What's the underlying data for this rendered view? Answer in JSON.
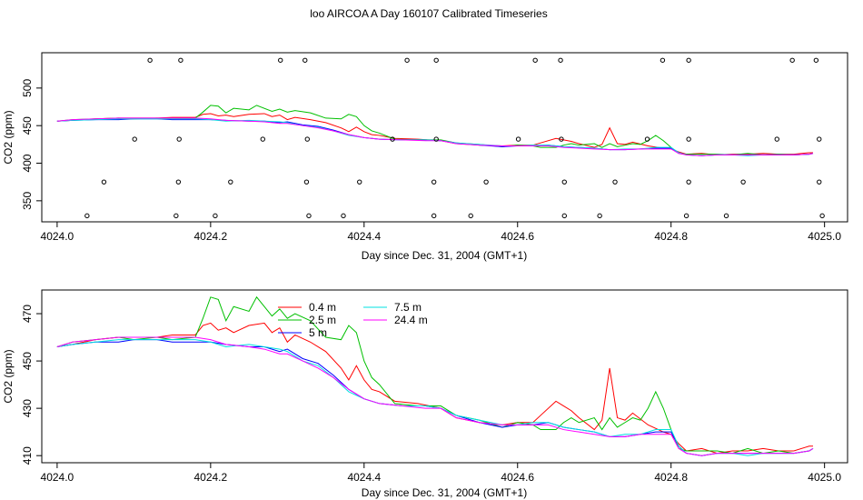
{
  "title": "loo AIRCOA A  Day 160107  Calibrated Timeseries",
  "colors": {
    "0.4 m": "#ff0000",
    "2.5 m": "#00c000",
    "5 m": "#0000ff",
    "7.5 m": "#00e0e0",
    "24.4 m": "#ff00ff",
    "axis": "#000000",
    "marker": "#000000"
  },
  "chart_data": [
    {
      "type": "line",
      "xlabel": "Day since Dec. 31, 2004 (GMT+1)",
      "ylabel": "CO2 (ppm)",
      "xlim": [
        4023.98,
        4025.03
      ],
      "ylim": [
        322,
        547
      ],
      "xticks": [
        "4024.0",
        "4024.2",
        "4024.4",
        "4024.6",
        "4024.8",
        "4025.0"
      ],
      "yticks": [
        "350",
        "400",
        "450",
        "500"
      ],
      "markers_note": "open circles mark samples at discrete levels",
      "markers": [
        [
          4024.121,
          537
        ],
        [
          4024.161,
          537
        ],
        [
          4024.291,
          537
        ],
        [
          4024.323,
          537
        ],
        [
          4024.456,
          537
        ],
        [
          4024.494,
          537
        ],
        [
          4024.623,
          537
        ],
        [
          4024.656,
          537
        ],
        [
          4024.789,
          537
        ],
        [
          4024.823,
          537
        ],
        [
          4024.958,
          537
        ],
        [
          4024.989,
          537
        ],
        [
          4024.101,
          432
        ],
        [
          4024.159,
          432
        ],
        [
          4024.268,
          432
        ],
        [
          4024.326,
          432
        ],
        [
          4024.437,
          432
        ],
        [
          4024.494,
          432
        ],
        [
          4024.601,
          432
        ],
        [
          4024.657,
          432
        ],
        [
          4024.769,
          432
        ],
        [
          4024.823,
          432
        ],
        [
          4024.938,
          432
        ],
        [
          4024.993,
          432
        ],
        [
          4024.061,
          375
        ],
        [
          4024.158,
          375
        ],
        [
          4024.226,
          375
        ],
        [
          4024.325,
          375
        ],
        [
          4024.394,
          375
        ],
        [
          4024.491,
          375
        ],
        [
          4024.559,
          375
        ],
        [
          4024.661,
          375
        ],
        [
          4024.727,
          375
        ],
        [
          4024.823,
          375
        ],
        [
          4024.894,
          375
        ],
        [
          4024.993,
          375
        ],
        [
          4024.039,
          330
        ],
        [
          4024.155,
          330
        ],
        [
          4024.206,
          330
        ],
        [
          4024.328,
          330
        ],
        [
          4024.373,
          330
        ],
        [
          4024.491,
          330
        ],
        [
          4024.539,
          330
        ],
        [
          4024.661,
          330
        ],
        [
          4024.707,
          330
        ],
        [
          4024.82,
          330
        ],
        [
          4024.872,
          330
        ],
        [
          4024.997,
          330
        ]
      ]
    },
    {
      "type": "line",
      "xlabel": "Day since Dec. 31, 2004 (GMT+1)",
      "ylabel": "CO2 (ppm)",
      "xlim": [
        4023.98,
        4025.03
      ],
      "ylim": [
        407,
        480
      ],
      "xticks": [
        "4024.0",
        "4024.2",
        "4024.4",
        "4024.6",
        "4024.8",
        "4025.0"
      ],
      "yticks": [
        "410",
        "430",
        "450",
        "470"
      ],
      "legend_position": "top-center",
      "series": [
        {
          "name": "0.4 m",
          "x": [
            4024.0,
            4024.02,
            4024.05,
            4024.08,
            4024.1,
            4024.13,
            4024.15,
            4024.18,
            4024.19,
            4024.2,
            4024.21,
            4024.22,
            4024.23,
            4024.25,
            4024.27,
            4024.28,
            4024.29,
            4024.3,
            4024.31,
            4024.33,
            4024.35,
            4024.37,
            4024.38,
            4024.39,
            4024.4,
            4024.41,
            4024.42,
            4024.44,
            4024.47,
            4024.5,
            4024.52,
            4024.55,
            4024.58,
            4024.6,
            4024.62,
            4024.63,
            4024.65,
            4024.66,
            4024.67,
            4024.68,
            4024.7,
            4024.71,
            4024.72,
            4024.73,
            4024.74,
            4024.75,
            4024.77,
            4024.79,
            4024.8,
            4024.81,
            4024.82,
            4024.84,
            4024.86,
            4024.88,
            4024.9,
            4024.92,
            4024.94,
            4024.96,
            4024.98,
            4024.985
          ],
          "values": [
            456,
            457,
            459,
            460,
            460,
            460,
            461,
            461,
            465,
            466,
            463,
            464,
            462,
            465,
            466,
            462,
            464,
            458,
            461,
            458,
            454,
            447,
            442,
            448,
            442,
            438,
            437,
            433,
            432,
            430,
            426,
            424,
            423,
            424,
            424,
            427,
            433,
            431,
            429,
            426,
            421,
            425,
            447,
            426,
            425,
            428,
            423,
            420,
            419,
            415,
            412,
            413,
            411,
            412,
            412,
            413,
            412,
            412,
            414,
            414
          ]
        },
        {
          "name": "2.5 m",
          "x": [
            4024.0,
            4024.02,
            4024.05,
            4024.08,
            4024.1,
            4024.13,
            4024.15,
            4024.18,
            4024.19,
            4024.2,
            4024.21,
            4024.22,
            4024.23,
            4024.25,
            4024.26,
            4024.28,
            4024.29,
            4024.3,
            4024.31,
            4024.33,
            4024.35,
            4024.37,
            4024.38,
            4024.39,
            4024.4,
            4024.41,
            4024.42,
            4024.44,
            4024.47,
            4024.5,
            4024.52,
            4024.55,
            4024.58,
            4024.6,
            4024.62,
            4024.63,
            4024.65,
            4024.66,
            4024.67,
            4024.68,
            4024.7,
            4024.71,
            4024.72,
            4024.73,
            4024.74,
            4024.75,
            4024.76,
            4024.77,
            4024.78,
            4024.79,
            4024.8,
            4024.81,
            4024.82,
            4024.84,
            4024.86,
            4024.88,
            4024.9,
            4024.92,
            4024.94,
            4024.96,
            4024.98,
            4024.985
          ],
          "values": [
            456,
            458,
            459,
            460,
            459,
            460,
            459,
            460,
            468,
            477,
            476,
            467,
            473,
            471,
            477,
            469,
            472,
            468,
            470,
            467,
            460,
            459,
            465,
            462,
            450,
            443,
            440,
            432,
            431,
            431,
            427,
            425,
            422,
            424,
            423,
            421,
            421,
            424,
            426,
            424,
            426,
            421,
            426,
            422,
            424,
            426,
            425,
            430,
            437,
            430,
            421,
            413,
            412,
            412,
            412,
            411,
            413,
            411,
            412,
            411,
            412,
            413
          ]
        },
        {
          "name": "5 m",
          "x": [
            4024.0,
            4024.02,
            4024.05,
            4024.08,
            4024.1,
            4024.13,
            4024.15,
            4024.18,
            4024.2,
            4024.22,
            4024.25,
            4024.27,
            4024.29,
            4024.3,
            4024.32,
            4024.34,
            4024.36,
            4024.38,
            4024.4,
            4024.42,
            4024.45,
            4024.48,
            4024.5,
            4024.52,
            4024.55,
            4024.58,
            4024.6,
            4024.62,
            4024.64,
            4024.66,
            4024.68,
            4024.7,
            4024.72,
            4024.74,
            4024.76,
            4024.78,
            4024.8,
            4024.81,
            4024.82,
            4024.84,
            4024.86,
            4024.88,
            4024.9,
            4024.92,
            4024.94,
            4024.96,
            4024.98,
            4024.985
          ],
          "values": [
            456,
            457,
            458,
            458,
            459,
            459,
            458,
            458,
            458,
            457,
            456,
            456,
            454,
            455,
            451,
            449,
            444,
            438,
            434,
            432,
            431,
            431,
            430,
            427,
            424,
            422,
            423,
            423,
            424,
            422,
            421,
            420,
            418,
            418,
            419,
            420,
            420,
            414,
            411,
            410,
            411,
            411,
            411,
            411,
            411,
            411,
            412,
            413
          ]
        },
        {
          "name": "7.5 m",
          "x": [
            4024.0,
            4024.02,
            4024.05,
            4024.08,
            4024.1,
            4024.13,
            4024.15,
            4024.18,
            4024.2,
            4024.22,
            4024.25,
            4024.27,
            4024.29,
            4024.3,
            4024.32,
            4024.34,
            4024.36,
            4024.38,
            4024.4,
            4024.42,
            4024.45,
            4024.48,
            4024.5,
            4024.52,
            4024.55,
            4024.58,
            4024.6,
            4024.62,
            4024.64,
            4024.66,
            4024.68,
            4024.7,
            4024.72,
            4024.74,
            4024.76,
            4024.78,
            4024.8,
            4024.81,
            4024.82,
            4024.84,
            4024.86,
            4024.88,
            4024.9,
            4024.92,
            4024.94,
            4024.96,
            4024.98,
            4024.985
          ],
          "values": [
            456,
            457,
            458,
            459,
            459,
            459,
            459,
            459,
            458,
            456,
            457,
            456,
            455,
            454,
            450,
            448,
            443,
            437,
            434,
            432,
            431,
            431,
            430,
            427,
            425,
            423,
            423,
            424,
            424,
            422,
            421,
            420,
            418,
            419,
            419,
            421,
            421,
            414,
            411,
            410,
            411,
            411,
            410,
            411,
            411,
            411,
            412,
            413
          ]
        },
        {
          "name": "24.4 m",
          "x": [
            4024.0,
            4024.02,
            4024.05,
            4024.08,
            4024.1,
            4024.13,
            4024.15,
            4024.18,
            4024.2,
            4024.22,
            4024.25,
            4024.27,
            4024.29,
            4024.3,
            4024.32,
            4024.34,
            4024.36,
            4024.38,
            4024.4,
            4024.42,
            4024.45,
            4024.48,
            4024.5,
            4024.52,
            4024.55,
            4024.58,
            4024.6,
            4024.62,
            4024.64,
            4024.66,
            4024.68,
            4024.7,
            4024.72,
            4024.74,
            4024.76,
            4024.78,
            4024.8,
            4024.81,
            4024.82,
            4024.84,
            4024.86,
            4024.88,
            4024.9,
            4024.92,
            4024.94,
            4024.96,
            4024.98,
            4024.985
          ],
          "values": [
            456,
            458,
            459,
            460,
            460,
            460,
            460,
            460,
            459,
            457,
            456,
            455,
            453,
            453,
            450,
            447,
            443,
            438,
            434,
            432,
            431,
            430,
            430,
            426,
            424,
            423,
            423,
            423,
            423,
            421,
            420,
            419,
            418,
            418,
            419,
            419,
            419,
            413,
            411,
            410,
            411,
            411,
            411,
            411,
            411,
            411,
            412,
            413
          ]
        }
      ]
    }
  ]
}
